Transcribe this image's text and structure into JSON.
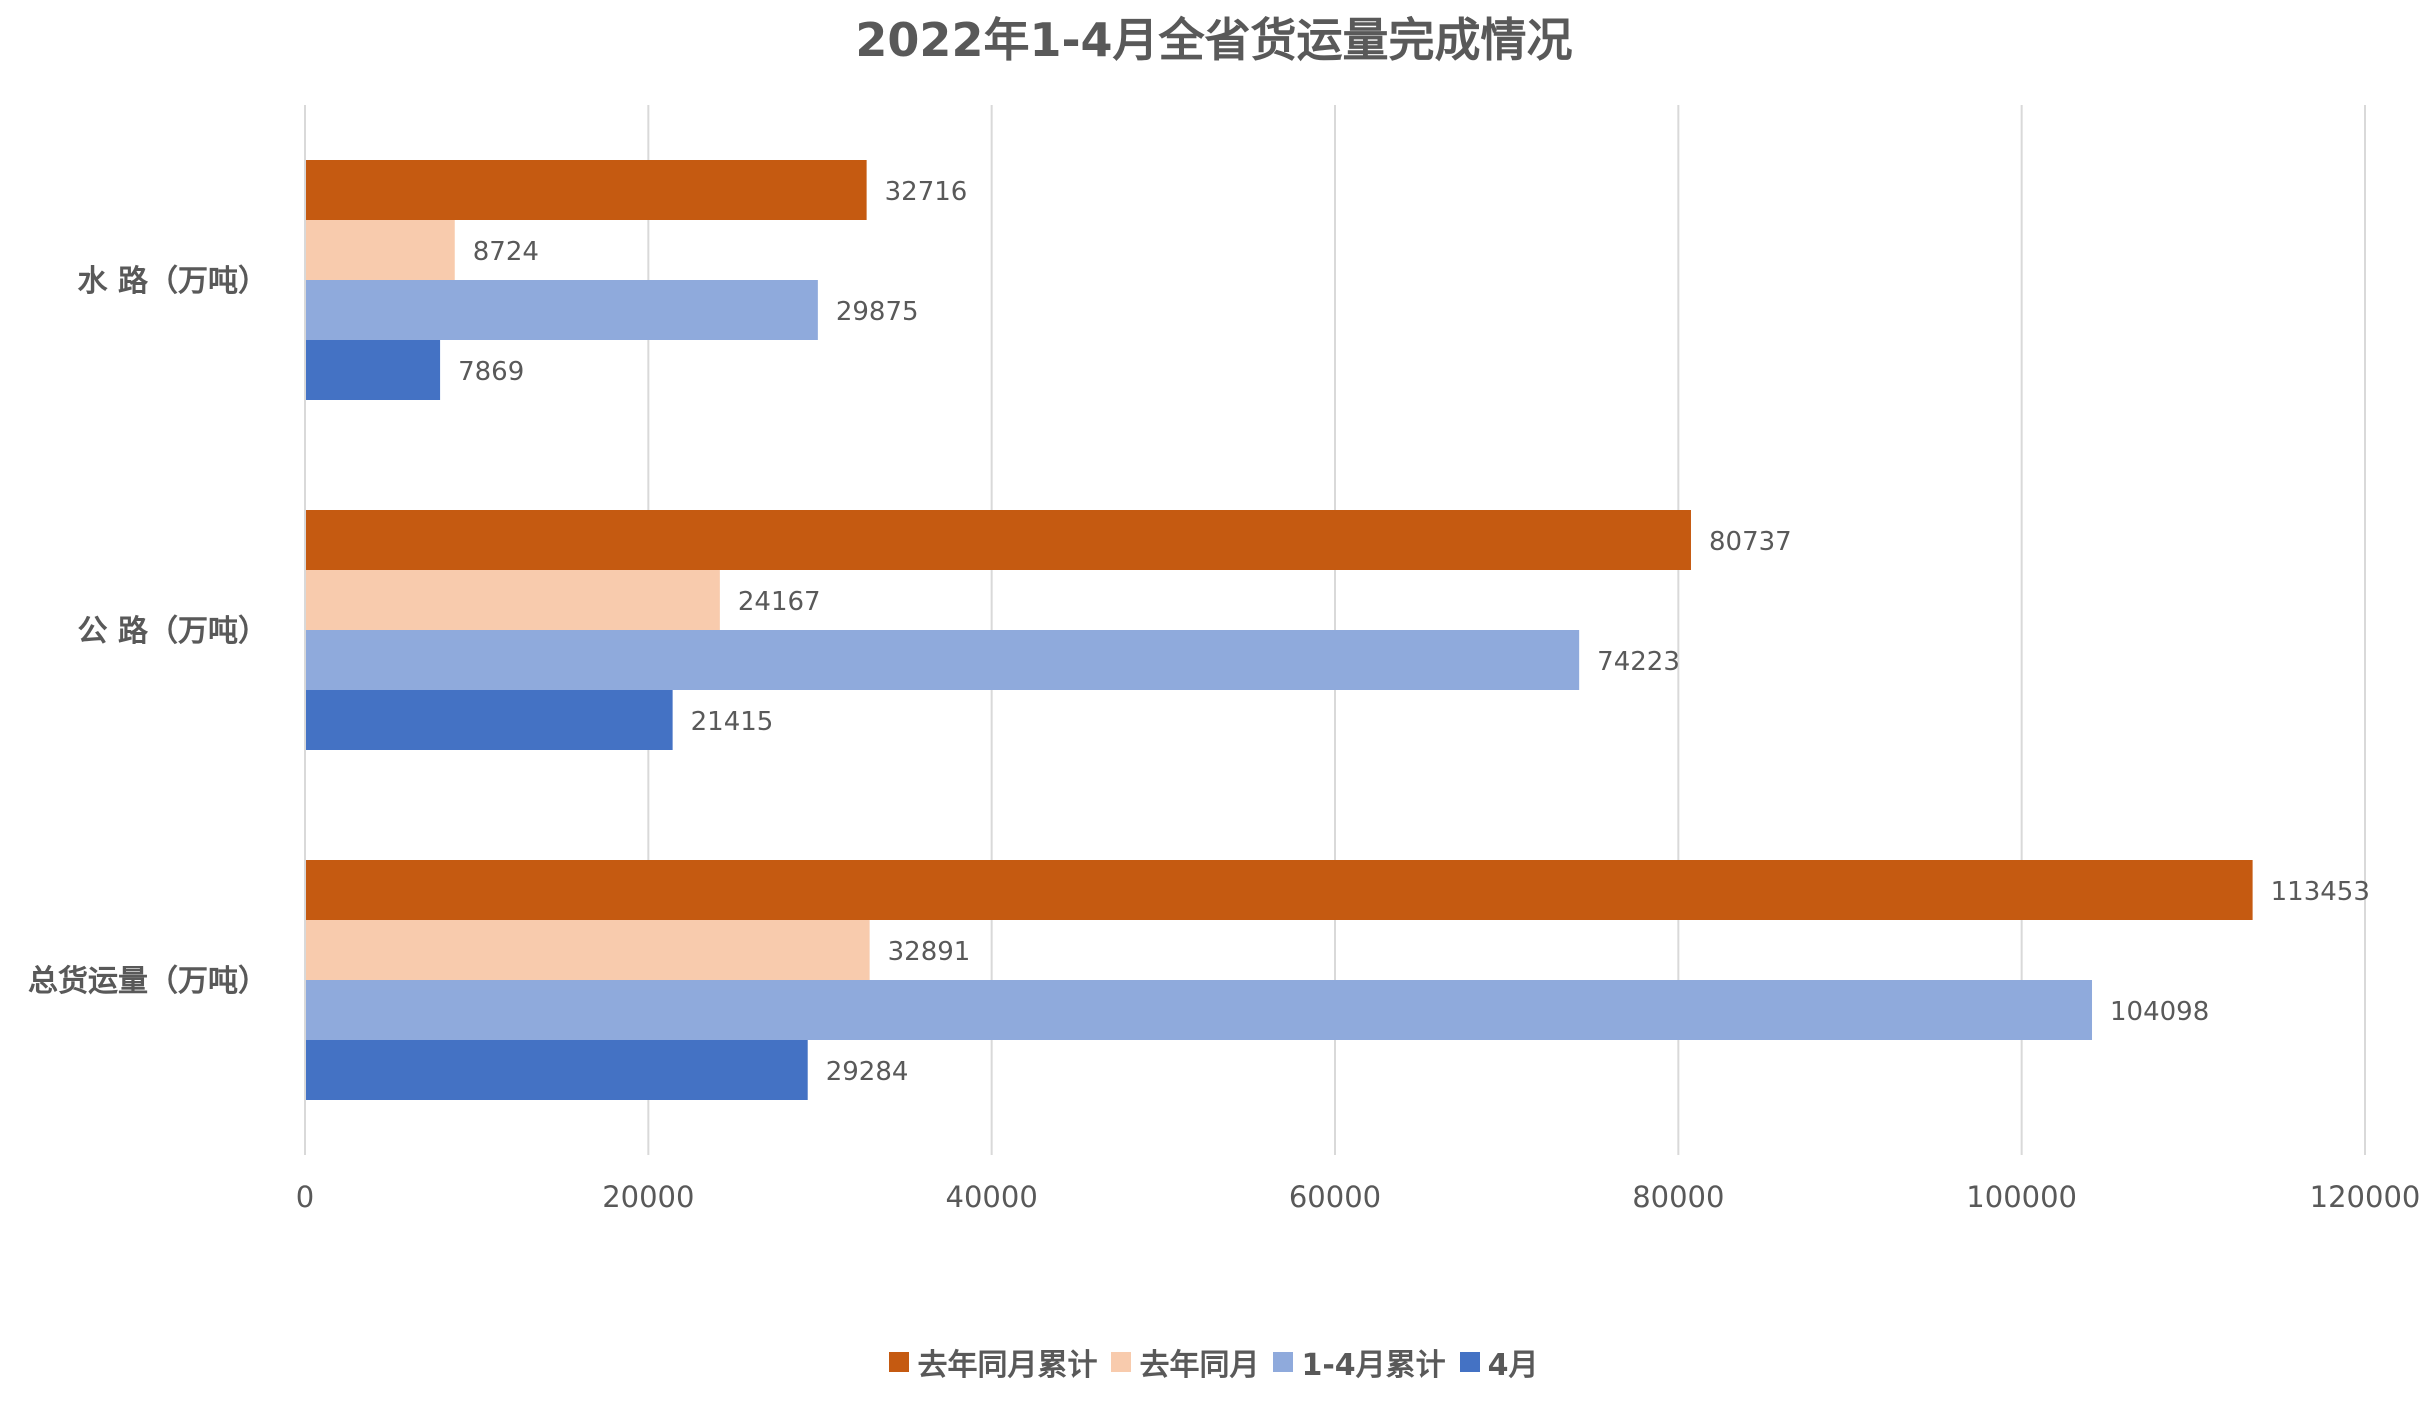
{
  "chart_data": {
    "type": "bar",
    "orientation": "horizontal",
    "title": "2022年1-4月全省货运量完成情况",
    "categories": [
      "水 路（万吨）",
      "公 路（万吨）",
      "总货运量（万吨）"
    ],
    "series": [
      {
        "name": "去年同月累计",
        "color": "#C55A11",
        "values": [
          32716,
          80737,
          113453
        ]
      },
      {
        "name": "去年同月",
        "color": "#F8CBAD",
        "values": [
          8724,
          24167,
          32891
        ]
      },
      {
        "name": "1-4月累计",
        "color": "#8FAADC",
        "values": [
          29875,
          74223,
          104098
        ]
      },
      {
        "name": "4月",
        "color": "#4472C4",
        "values": [
          7869,
          21415,
          29284
        ]
      }
    ],
    "x_ticks": [
      "0",
      "20000",
      "40000",
      "60000",
      "80000",
      "100000",
      "120000"
    ],
    "xlim": [
      0,
      120000
    ],
    "grid": true,
    "legend_position": "bottom",
    "data_labels": true
  }
}
